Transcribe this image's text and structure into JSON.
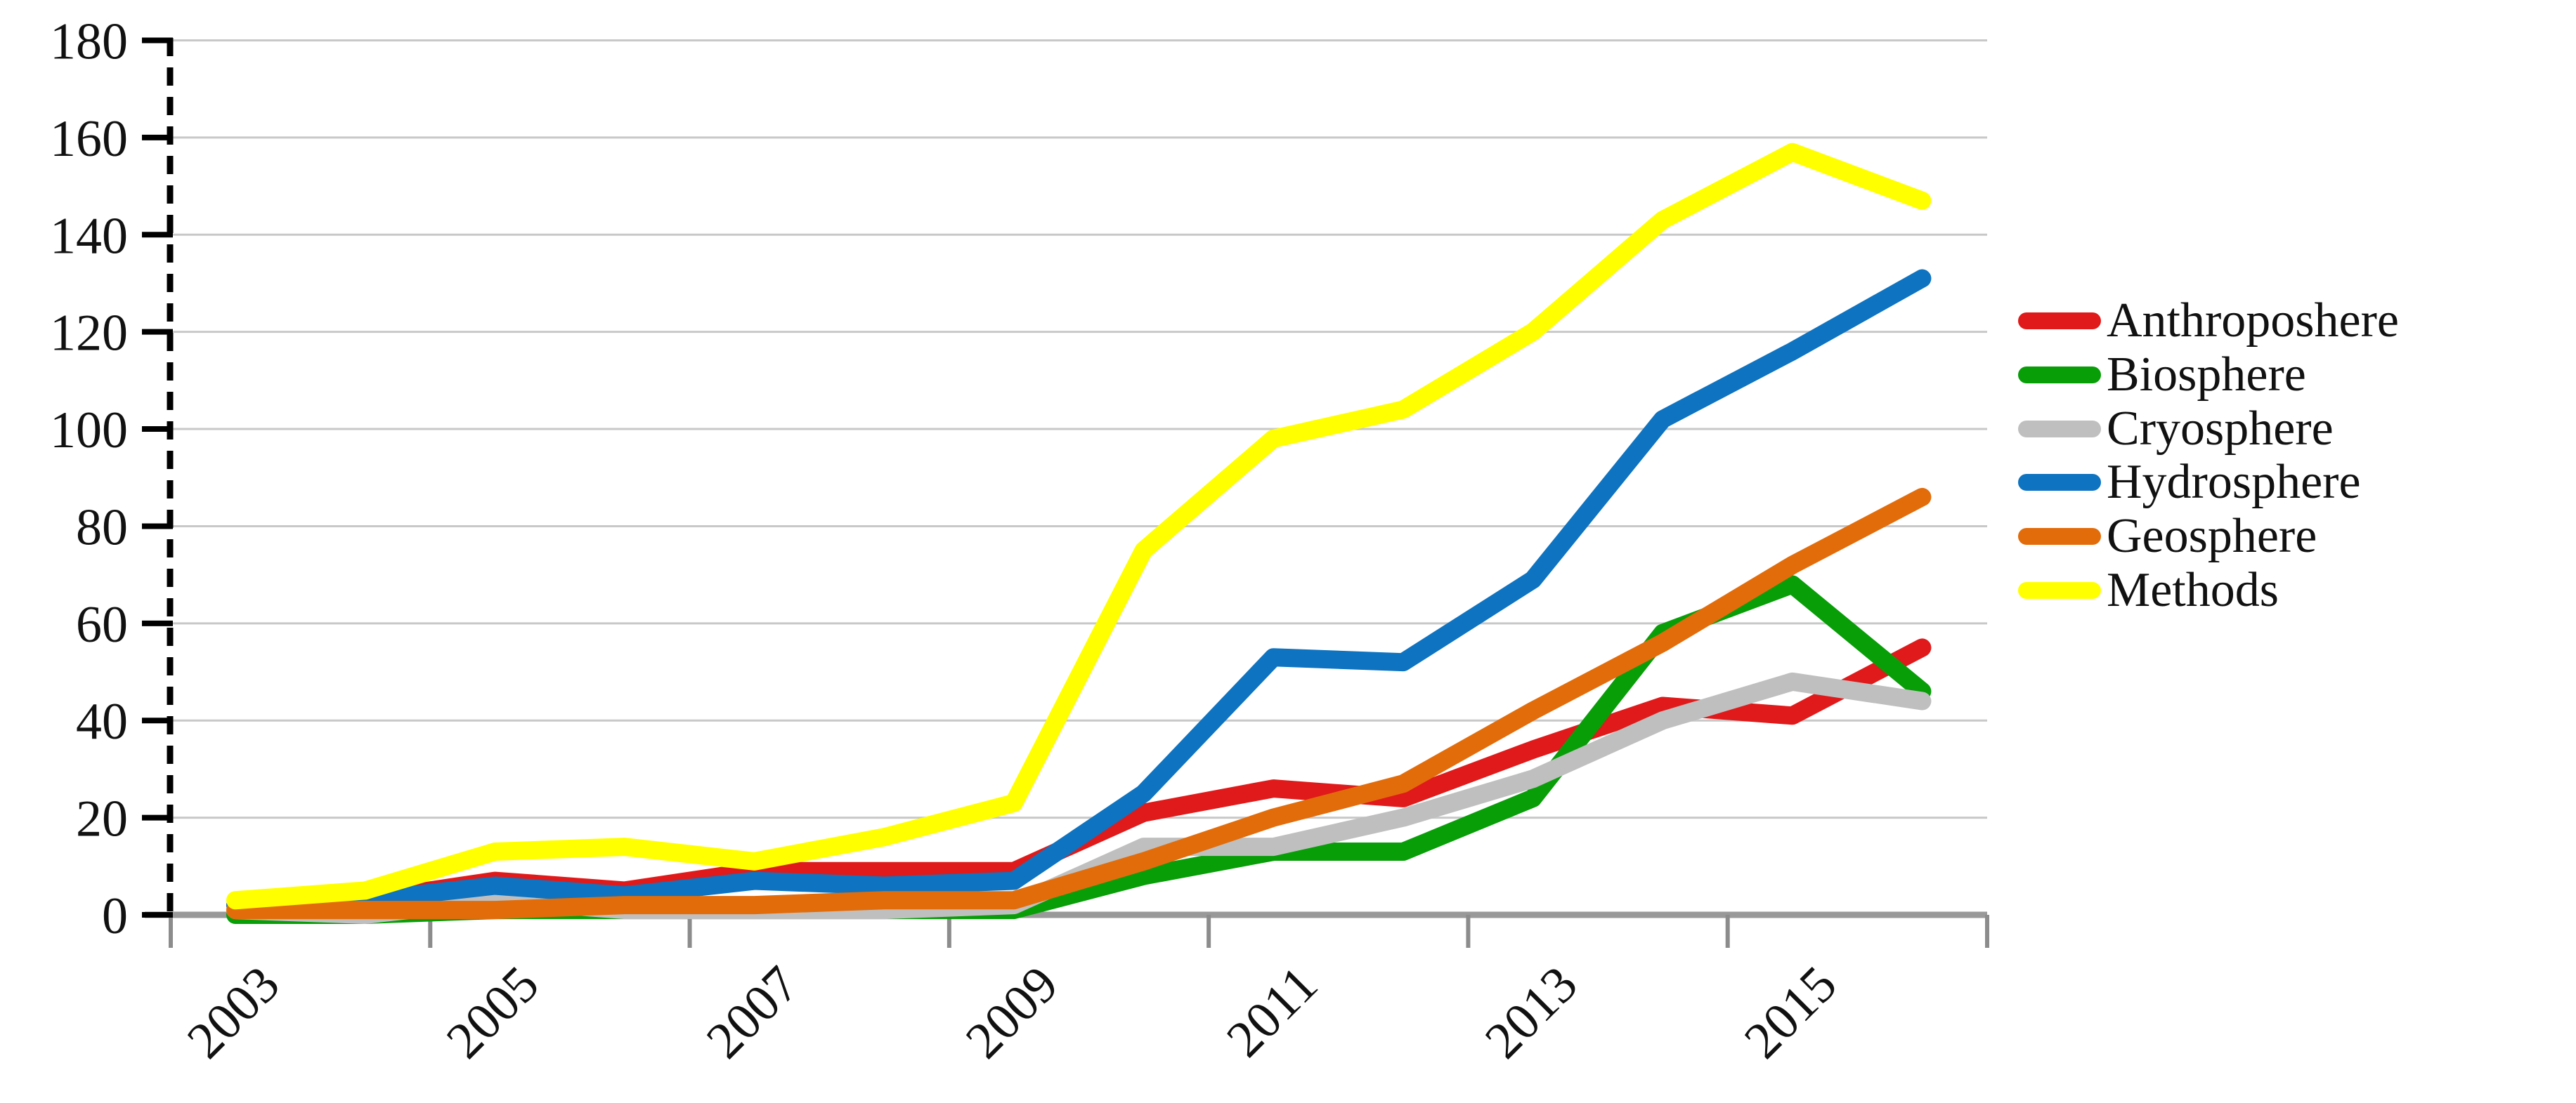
{
  "chart_data": {
    "type": "line",
    "title": "",
    "xlabel": "",
    "ylabel": "",
    "ylim": [
      0,
      180
    ],
    "y_tick_step": 20,
    "y_tick_labels": [
      "0",
      "20",
      "40",
      "60",
      "80",
      "100",
      "120",
      "140",
      "160",
      "180"
    ],
    "grid": "horizontal",
    "legend_position": "right",
    "years": [
      2003,
      2004,
      2005,
      2006,
      2007,
      2008,
      2009,
      2010,
      2011,
      2012,
      2013,
      2014,
      2015,
      2016
    ],
    "x_tick_labels": [
      "2003",
      "2005",
      "2007",
      "2009",
      "2011",
      "2013",
      "2015"
    ],
    "series": [
      {
        "name": "Anthroposhere",
        "color": "#e01a1a",
        "values": [
          2,
          3,
          7,
          5,
          9,
          9,
          9,
          21,
          26,
          24,
          34,
          43,
          41,
          55
        ]
      },
      {
        "name": "Biosphere",
        "color": "#089e08",
        "values": [
          0,
          0,
          1,
          1,
          1,
          1,
          1,
          8,
          13,
          13,
          24,
          58,
          68,
          46
        ]
      },
      {
        "name": "Cryosphere",
        "color": "#bfbfbf",
        "values": [
          1,
          0,
          3,
          1,
          1,
          1,
          2,
          14,
          14,
          20,
          28,
          40,
          48,
          44
        ]
      },
      {
        "name": "Hydrosphere",
        "color": "#0e73c0",
        "values": [
          2,
          3,
          6,
          4,
          7,
          6,
          7,
          25,
          53,
          52,
          69,
          102,
          116,
          131
        ]
      },
      {
        "name": "Geosphere",
        "color": "#e36c0a",
        "values": [
          1,
          1,
          1,
          2,
          2,
          3,
          3,
          11,
          20,
          27,
          42,
          56,
          72,
          86
        ]
      },
      {
        "name": "Methods",
        "color": "#ffff00",
        "values": [
          3,
          5,
          13,
          14,
          11,
          16,
          23,
          75,
          98,
          104,
          120,
          143,
          157,
          147
        ]
      }
    ],
    "axis_colors": {
      "grid": "#c8c8c8",
      "x_axis": "#999999",
      "x_tick": "#8c8c8c",
      "y_axis_dashed": "#000000",
      "y_tick": "#000000",
      "text": "#111111"
    }
  }
}
